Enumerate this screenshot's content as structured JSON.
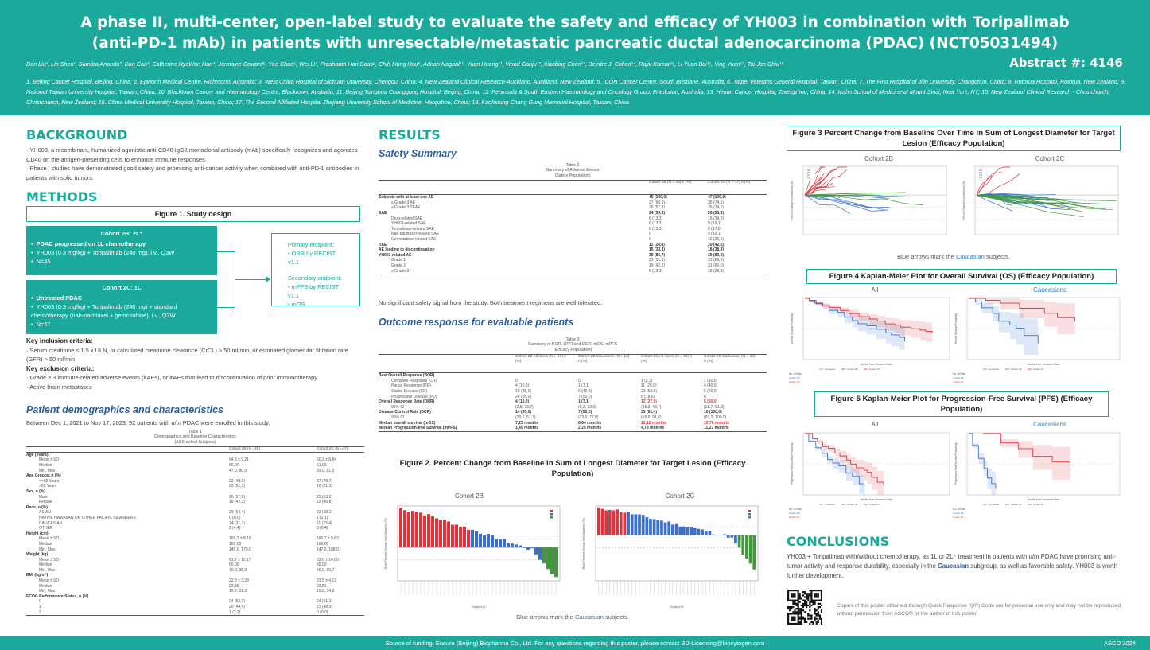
{
  "header": {
    "title_line1": "A phase II, multi-center, open-label study to evaluate the safety and efficacy of YH003 in combination with Toripalimab",
    "title_line2": "(anti-PD-1 mAb) in patients with unresectable/metastatic pancreatic ductal adenocarcinoma (PDAC) (NCT05031494)",
    "authors": "Dan Liu¹, Lin Shen¹, Sumitra Ananda², Dan Cao³, Catherine HyeWon Han⁴, Jermaine Coward⁵, Yee Chao⁶, Wei Li⁷, Prashanth Hari Dass⁸, Chih-Hung Hsu⁹, Adnan Nagrial¹⁰, Yuan Huang¹¹, Vinod Ganju¹², Xiaobing Chen¹³, Deirdre J. Cohen¹⁴, Rajiv Kumar¹⁵, Li-Yuan Bai¹⁶, Ying Yuan¹⁷, Tai-Jan Chiu¹⁸",
    "abstract": "Abstract #: 4146",
    "affiliations": "1. Beijing Cancer Hospital, Beijing, China; 2. Epworth Medical Centre, Richmond, Australia; 3. West China Hospital of Sichuan University, Chengdu, China; 4. New Zealand Clinical Research-Auckland, Auckland, New Zealand; 5. ICON Cancer Centre, South Brisbane, Australia; 6. Taipei Veterans General Hospital, Taiwan, China; 7. The First Hospital of Jilin University, Changchun, China; 8. Rotorua Hospital, Rotorua, New Zealand; 9. National Taiwan University Hospital, Taiwan, China; 10. Blacktown Cancer and Haematology Centre, Blacktown, Australia; 11. Beijing Tsinghua Changgung Hospital, Beijing, China; 12. Peninsula & South Eastern Haematology and Oncology Group, Frankston, Australia; 13. Henan Cancer Hospital, Zhengzhou, China; 14. Icahn School of Medicine at Mount Sinai, New York, NY; 15. New Zealand Clinical Research - Christchurch, Christchurch, New Zealand; 16. China Medical University Hospital, Taiwan, China; 17. The Second Affiliated Hospital Zhejiang University School of Medicine, Hangzhou, China; 18. Kaohsiung Chang Gung Memorial Hospital, Taiwan, China"
  },
  "background": {
    "heading": "BACKGROUND",
    "p1": "· YH003, a recombinant, humanized agonistic anti-CD40 IgG2 monoclonal antibody (mAb) specifically recognizes and agonizes CD40 on the antigen-presenting cells to enhance immune responses.",
    "p2": "· Phase I studies have demonstrated good safety and promising anti-cancer activity when combined with anti-PD-1 antibodies in patients with solid tumors."
  },
  "methods": {
    "heading": "METHODS",
    "fig1_title": "Figure 1. Study design",
    "cohort2b_title": "Cohort 2B: 2L⁺",
    "cohort2b_items": [
      "PDAC progressed on 1L chemotherapy",
      "YH003 (0.3 mg/kg) + Toripalimab (240 mg), i.v., Q3W",
      "N=45"
    ],
    "cohort2c_title": "Cohort 2C: 1L",
    "cohort2c_items": [
      "Untreated PDAC",
      "YH003 (0.3 mg/kg) + Toripalimab (240 mg) + standard chemotherapy (nab-paclitaxel + gemcitabine), i.v., Q3W",
      "N=47"
    ],
    "primary_label": "Primary endpoint:",
    "primary_item": "ORR by RECIST v1.1",
    "secondary_label": "Secondary endpoint:",
    "secondary_items": [
      "mPFS by RECIST v1.1",
      "mOS"
    ],
    "incl_label": "Key inclusion criteria:",
    "incl_text": "· Serum creatinine ≤ 1.5 x ULN, or calculated creatinine clearance (CrCL) > 50 ml/min, or estimated glomerular filtration rate (GFR) > 50 ml/min",
    "excl_label": "Key exclusion criteria:",
    "excl_text1": "· Grade ≥ 3 immune-related adverse events (irAEs), or irAEs that lead to discontinuation of prior immunotherapy",
    "excl_text2": "· Active brain metastases"
  },
  "demographics": {
    "heading": "Patient demographics and characteristics",
    "intro": "Between Dec 1, 2021 to Nov 17, 2023, 92 patients with u/m PDAC were enrolled in this study.",
    "caption1": "Table 1",
    "caption2": "Demographics and Baseline Characteristics",
    "caption3": "(All Enrolled Subjects)",
    "col1": "Cohort 2B (N =45)",
    "col2": "Cohort 2C (N =47)",
    "rows": [
      {
        "l": "Age (Years)",
        "a": "",
        "b": "",
        "t": "g"
      },
      {
        "l": "Mean ± SD",
        "a": "64,8 ± 9,21",
        "b": "60,2 ± 8,84",
        "t": "s"
      },
      {
        "l": "Median",
        "a": "66,00",
        "b": "61,00",
        "t": "s"
      },
      {
        "l": "Min, Max",
        "a": "47,0, 80,0",
        "b": "39,0, 81,0",
        "t": "s"
      },
      {
        "l": "Age Groups, n (%)",
        "a": "",
        "b": "",
        "t": "g"
      },
      {
        "l": "<=65 Years",
        "a": "22 (48,9)",
        "b": "37 (78,7)",
        "t": "s"
      },
      {
        "l": ">65 Years",
        "a": "23 (51,1)",
        "b": "10 (21,3)",
        "t": "s"
      },
      {
        "l": "Sex, n (%)",
        "a": "",
        "b": "",
        "t": "g"
      },
      {
        "l": "Male",
        "a": "26 (57,8)",
        "b": "25 (53,2)",
        "t": "s"
      },
      {
        "l": "Female",
        "a": "19 (42,2)",
        "b": "22 (46,8)",
        "t": "s"
      },
      {
        "l": "Race, n (%)",
        "a": "",
        "b": "",
        "t": "g"
      },
      {
        "l": "ASIAN",
        "a": "29 (64,4)",
        "b": "32 (68,1)",
        "t": "s"
      },
      {
        "l": "NATIVE HAWAIIAN OR OTHER PACIFIC ISLANDERS",
        "a": "0 (0,0)",
        "b": "1 (2,1)",
        "t": "s"
      },
      {
        "l": "CAUCASIAN",
        "a": "14 (31,1)",
        "b": "11 (23,4)",
        "t": "s"
      },
      {
        "l": "OTHER",
        "a": "2 (4,4)",
        "b": "3 (6,4)",
        "t": "s"
      },
      {
        "l": "Height (cm)",
        "a": "",
        "b": "",
        "t": "g"
      },
      {
        "l": "Mean ± SD",
        "a": "165,2 ± 8,18",
        "b": "165,7 ± 9,83",
        "t": "s"
      },
      {
        "l": "Median",
        "a": "165,00",
        "b": "168,00",
        "t": "s"
      },
      {
        "l": "Min, Max",
        "a": "145,0, 179,0",
        "b": "147,0, 188,0",
        "t": "s"
      },
      {
        "l": "Weight (kg)",
        "a": "",
        "b": "",
        "t": "g"
      },
      {
        "l": "Mean ± SD",
        "a": "61,7 ± 11,17",
        "b": "63,6 ± 14,00",
        "t": "s"
      },
      {
        "l": "Median",
        "a": "60,00",
        "b": "65,00",
        "t": "s"
      },
      {
        "l": "Min, Max",
        "a": "40,0, 98,0",
        "b": "40,0, 95,7",
        "t": "s"
      },
      {
        "l": "BMI (kg/m²)",
        "a": "",
        "b": "",
        "t": "g"
      },
      {
        "l": "Mean ± SD",
        "a": "22,3 ± 3,28",
        "b": "23,5 ± 4,12",
        "t": "s"
      },
      {
        "l": "Median",
        "a": "22,36",
        "b": "23,51",
        "t": "s"
      },
      {
        "l": "Min, Max",
        "a": "16,2, 31,2",
        "b": "15,8, 34,9",
        "t": "s"
      },
      {
        "l": "ECOG Performance Status, n (%)",
        "a": "",
        "b": "",
        "t": "g"
      },
      {
        "l": "0",
        "a": "24 (53,3)",
        "b": "24 (51,1)",
        "t": "s"
      },
      {
        "l": "1",
        "a": "20 (44,4)",
        "b": "23 (48,9)",
        "t": "s"
      },
      {
        "l": "2",
        "a": "1 (2,2)",
        "b": "0 (0,0)",
        "t": "s"
      }
    ]
  },
  "results": {
    "heading": "RESULTS",
    "safety_heading": "Safety Summary",
    "t2_caption1": "Table 2",
    "t2_caption2": "Summary of Adverse Events",
    "t2_caption3": "(Safety Population)",
    "t2_col1": "Cohort 2B (N = 45) n (%)",
    "t2_col2": "Cohort 2C (N = 47) n (%)",
    "t2_rows": [
      {
        "l": "Subjects with at least one AE",
        "a": "45 (100,0)",
        "b": "47 (100,0)",
        "t": "g"
      },
      {
        "l": "≥ Grade 3 AE",
        "a": "27 (60,0)",
        "b": "35 (74,5)",
        "t": "s"
      },
      {
        "l": "≥ Grade 3 TEAE",
        "a": "26 (57,8)",
        "b": "35 (74,5)",
        "t": "s"
      },
      {
        "l": "SAE",
        "a": "24 (53,3)",
        "b": "26 (55,3)",
        "t": "g"
      },
      {
        "l": "Drug-related SAE",
        "a": "6 (13,3)",
        "b": "16 (34,0)",
        "t": "s"
      },
      {
        "l": "YH003-related SAE",
        "a": "6 (13,3)",
        "b": "9 (19,1)",
        "t": "s"
      },
      {
        "l": "Toripalimab-related SAE",
        "a": "6 (13,3)",
        "b": "8 (17,0)",
        "t": "s"
      },
      {
        "l": "Nab-paclitaxel-related SAE",
        "a": "0",
        "b": "9 (19,1)",
        "t": "s"
      },
      {
        "l": "Gemcitabine-related SAE",
        "a": "0",
        "b": "12 (25,5)",
        "t": "s"
      },
      {
        "l": "irAE",
        "a": "11 (24,4)",
        "b": "20 (42,6)",
        "t": "g"
      },
      {
        "l": "AE leading to discontinuation",
        "a": "15 (33,3)",
        "b": "18 (38,3)",
        "t": "g"
      },
      {
        "l": "YH003-related AE",
        "a": "39 (86,7)",
        "b": "39 (83,0)",
        "t": "g"
      },
      {
        "l": "Grade 1",
        "a": "23 (51,1)",
        "b": "31 (66,0)",
        "t": "s"
      },
      {
        "l": "Grade 2",
        "a": "19 (42,2)",
        "b": "31 (66,0)",
        "t": "s"
      },
      {
        "l": "≥ Grade 3",
        "a": "6 (13,3)",
        "b": "18 (38,3)",
        "t": "s"
      }
    ],
    "safety_note": "No significant safety signal from the study. Both treatment regimens are well tolerated.",
    "outcome_heading": "Outcome response for evaluable patients",
    "t3_caption1": "Table 3",
    "t3_caption2": "Summary of BOR, ORR and DCR, mOS, mPFS",
    "t3_caption3": "(Efficacy Population)",
    "t3_cols": [
      "Cohort 2B All races (N = 40) n (%)",
      "Cohort 2B Caucasian (N = 14) n (%)",
      "Cohort 2C All races (N = 43) n (%)",
      "Cohort 2C Caucasian (N = 10) n (%)"
    ],
    "t3_rows": [
      {
        "l": "Best Overall Response (BOR)",
        "v": [
          "",
          "",
          "",
          ""
        ],
        "t": "g"
      },
      {
        "l": "Complete Response (CR)",
        "v": [
          "0",
          "0",
          "1 (2,3)",
          "1 (10,0)"
        ],
        "t": "s"
      },
      {
        "l": "Partial Response (PR)",
        "v": [
          "4 (10,0)",
          "1 (7,1)",
          "11 (25,6)",
          "4 (40,0)"
        ],
        "t": "s"
      },
      {
        "l": "Stable Disease (SD)",
        "v": [
          "10 (25,0)",
          "6 (42,9)",
          "23 (53,5)",
          "5 (50,0)"
        ],
        "t": "s"
      },
      {
        "l": "Progressive Disease (PD)",
        "v": [
          "26 (65,0)",
          "7 (50,0)",
          "8 (18,6)",
          "0"
        ],
        "t": "s"
      },
      {
        "l": "Overall Response Rate (ORR)",
        "v": [
          "4 (10,0)",
          "1 (7,1)",
          "12 (27,9)",
          "5 (50,0)"
        ],
        "t": "g"
      },
      {
        "l": "95% CI",
        "v": [
          "(2,8, 23,7)",
          "(0,2, 33,9)",
          "(15,3, 43,7)",
          "(18,7, 81,3)"
        ],
        "t": "s"
      },
      {
        "l": "Disease Control Rate (DCR)",
        "v": [
          "14 (35,0)",
          "7 (50,0)",
          "35 (81,4)",
          "10 (100,0)"
        ],
        "t": "g"
      },
      {
        "l": "95% CI",
        "v": [
          "(20,6, 51,7)",
          "(23,0, 77,0)",
          "(66,6, 91,6)",
          "(69,2, 100,0)"
        ],
        "t": "s"
      },
      {
        "l": "Median overall survival (mOS)",
        "v": [
          "7,23 months",
          "8,64 months",
          "12,12 months",
          "10,78 months"
        ],
        "t": "g"
      },
      {
        "l": "Median Progression-free Survival (mPFS)",
        "v": [
          "1,49 months",
          "2,25 months",
          "4,73 months",
          "11,27 months"
        ],
        "t": "g"
      }
    ],
    "fig2_title": "Figure 2. Percent Change from Baseline in Sum of Longest Diameter for Target Lesion (Efficacy Population)",
    "fig2_left": "Cohort 2B",
    "fig2_right": "Cohort 2C",
    "fig2_xlabel": "Subject ID",
    "fig2_ylabel": "Best Percent Change from Baseline (%)",
    "fig2_note_a": "Blue arrows mark the ",
    "fig2_note_b": "Caucasian",
    "fig2_note_c": " subjects."
  },
  "figures": {
    "fig3_title": "Figure 3 Percent Change from Baseline Over Time in Sum of Longest Diameter for Target Lesion (Efficacy Population)",
    "fig3_left": "Cohort 2B",
    "fig3_right": "Cohort 2C",
    "fig3_ylabel": "Percent Change from Baseline (%)",
    "fig3_note_a": "Blue arrows mark the ",
    "fig3_note_b": "Caucasian",
    "fig3_note_c": " subjects.",
    "fig4_title": "Figure 4 Kaplan-Meier Plot for Overall Survival (OS) (Efficacy Population)",
    "fig4_left": "All",
    "fig4_right": "Caucasians",
    "fig4_ylabel": "Overall Survival Probability",
    "fig4_xlabel": "Months from Treatment Start",
    "fig5_title": "Figure 5 Kaplan-Meier Plot for Progression-Free Survival (PFS) (Efficacy Population)",
    "fig5_left": "All",
    "fig5_right": "Caucasians",
    "fig5_ylabel": "Progression-Free Survival Probability",
    "fig5_xlabel": "Months from Treatment Start",
    "legend_censored": "Censored",
    "legend_2b": "Cohort 2B",
    "legend_2c": "Cohort 2C",
    "no_at_risk": "No. at Risk"
  },
  "conclusions": {
    "heading": "CONCLUSIONS",
    "text_a": "YH003 + Toripalimab with/without chemotherapy, as 1L or 2L⁺ treatment in patients with u/m PDAC have promising anti-tumor activity and response durability, especially in the ",
    "text_b": "Caucasian",
    "text_c": " subgroup, as well as favorable safety. YH003 is worth further development.",
    "qr_note": "Copies of this poster obtained through Quick Response (QR) Code are for personal use only and may not be reproduced without permission from ASCO® or the author of this poster."
  },
  "footer": {
    "source": "Source of funding: Eucure (Beijing) Biopharma Co., Ltd. For any questions regarding this poster, please contact BD-Licensing@biocytogen.com",
    "asco": "ASCO 2024"
  },
  "colors": {
    "teal": "#1aa99b",
    "blue": "#2a5d9f",
    "red": "#d9363e",
    "barblue": "#3b6fc9",
    "green": "#3f9b3a"
  }
}
